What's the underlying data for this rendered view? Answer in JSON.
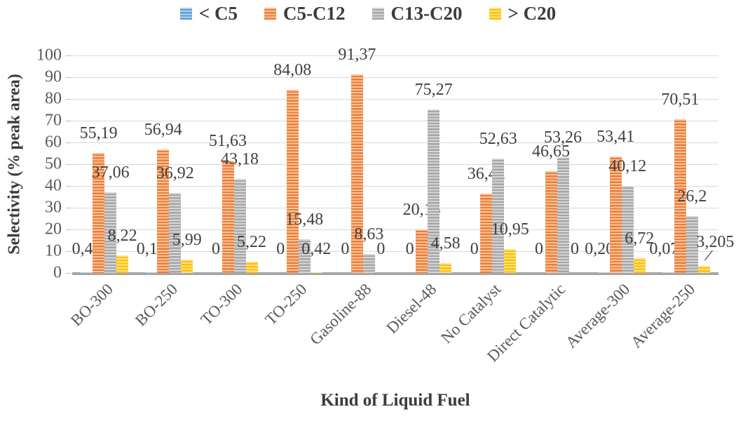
{
  "chart_data": {
    "type": "bar",
    "title": "",
    "xlabel": "Kind of Liquid Fuel",
    "ylabel": "Selectivity (% peak area)",
    "ylim": [
      0,
      100
    ],
    "ytick_step": 10,
    "yticks": [
      0,
      10,
      20,
      30,
      40,
      50,
      60,
      70,
      80,
      90,
      100
    ],
    "grid": true,
    "legend_position": "top",
    "decimal_separator": ",",
    "bar_pattern": "light-horizontal-stripes",
    "categories": [
      "BO-300",
      "BO-250",
      "TO-300",
      "TO-250",
      "Gasoline-88",
      "Diesel-48",
      "No Catalyst",
      "Direct Catalytic",
      "Average-300",
      "Average-250"
    ],
    "series": [
      {
        "name": "< C5",
        "color": "#5B9BD5",
        "values": [
          0.41,
          0.15,
          0,
          0,
          0,
          0,
          0,
          0,
          0.205,
          0.075
        ]
      },
      {
        "name": "C5-C12",
        "color": "#ED7D31",
        "values": [
          55.19,
          56.94,
          51.63,
          84.08,
          91.37,
          20.15,
          36.42,
          46.65,
          53.41,
          70.51
        ]
      },
      {
        "name": "C13-C20",
        "color": "#A5A5A5",
        "values": [
          37.06,
          36.92,
          43.18,
          15.48,
          8.63,
          75.27,
          52.63,
          53.26,
          40.12,
          26.2
        ]
      },
      {
        "name": "> C20",
        "color": "#FFC000",
        "values": [
          8.22,
          5.99,
          5.22,
          0.42,
          0,
          4.58,
          10.95,
          0,
          6.72,
          3.205
        ]
      }
    ],
    "data_labels": {
      "BO-300": [
        "0,41",
        "55,19",
        "37,06",
        "8,22"
      ],
      "BO-250": [
        "0,15",
        "56,94",
        "36,92",
        "5,99"
      ],
      "TO-300": [
        "0",
        "51,63",
        "43,18",
        "5,22"
      ],
      "TO-250": [
        "0",
        "84,08",
        "15,48",
        "0,42"
      ],
      "Gasoline-88": [
        "0",
        "91,37",
        "8,63",
        "0"
      ],
      "Diesel-48": [
        "0",
        "20,15",
        "75,27",
        "4,58"
      ],
      "No Catalyst": [
        "0",
        "36,42",
        "52,63",
        "10,95"
      ],
      "Direct Catalytic": [
        "0",
        "46,65",
        "53,26",
        "0"
      ],
      "Average-300": [
        "0,205",
        "53,41",
        "40,12",
        "6,72"
      ],
      "Average-250": [
        "0,075",
        "70,51",
        "26,2",
        "3,205"
      ]
    },
    "annotations": {
      "leader_line": {
        "category": "Average-250",
        "series": "> C20"
      }
    },
    "style_colors": {
      "gridline": "#D9D9D9",
      "axis_line": "#A6A6A6",
      "tick_text": "#595959",
      "label_text": "#404040",
      "title_text": "#3B3B3B"
    }
  }
}
